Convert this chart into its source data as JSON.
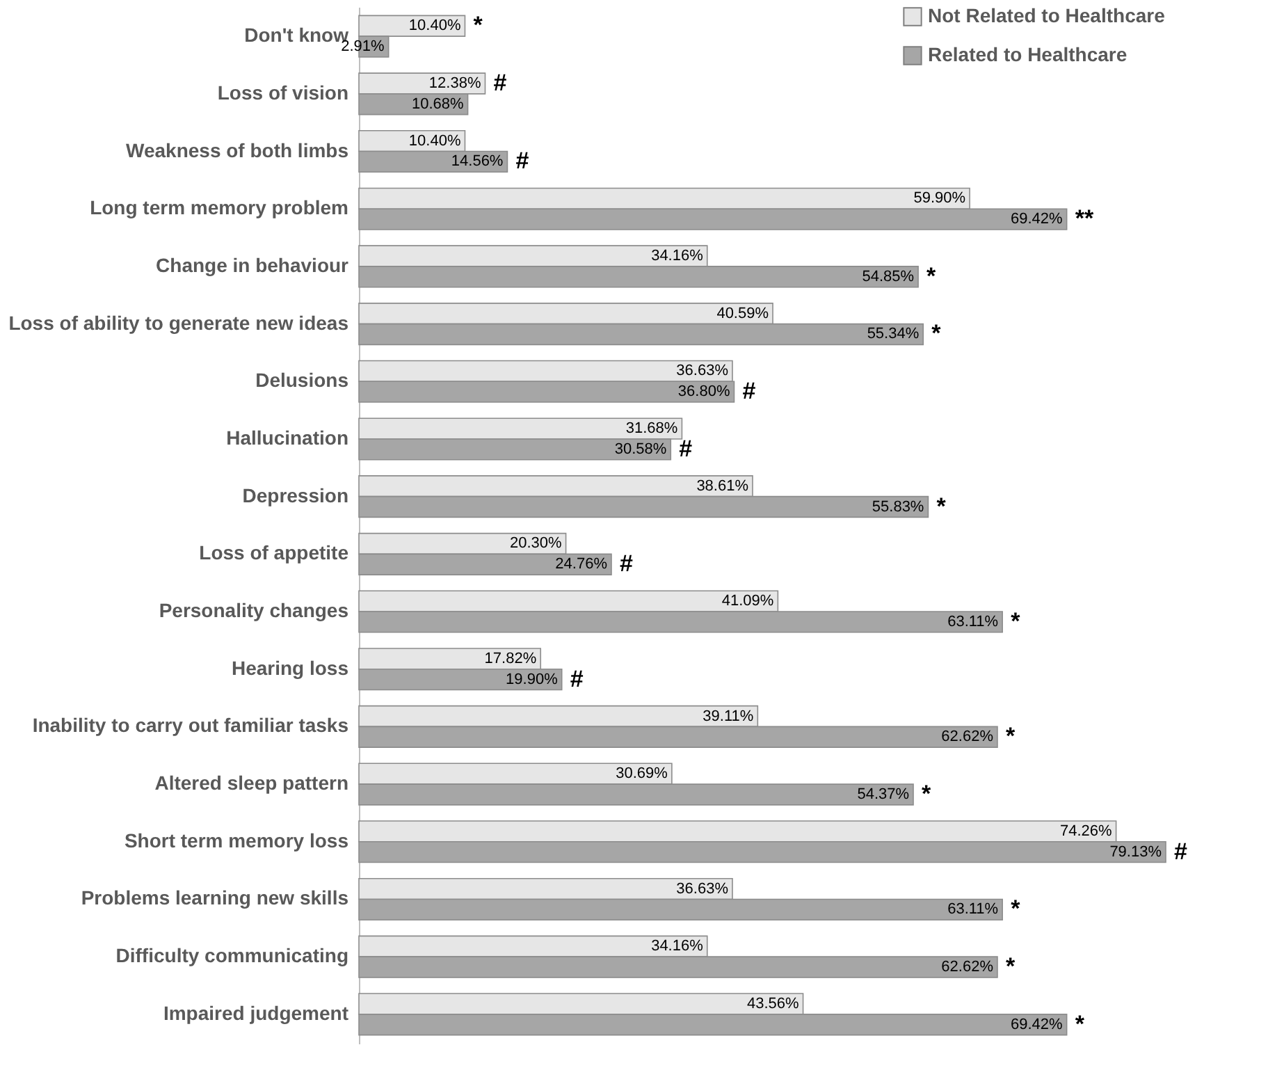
{
  "chart_data": {
    "type": "bar",
    "orientation": "horizontal",
    "legend": "top right",
    "grid": false,
    "tick_labels": "y",
    "categories": [
      "Don't know",
      "Loss of vision",
      "Weakness of both limbs",
      "Long term memory problem",
      "Change in behaviour",
      "Loss of ability to generate new ideas",
      "Delusions",
      "Hallucination",
      "Depression",
      "Loss of appetite",
      "Personality changes",
      "Hearing loss",
      "Inability to carry out familiar tasks",
      "Altered sleep pattern",
      "Short term memory loss",
      "Problems learning new skills",
      "Difficulty communicating",
      "Impaired judgement"
    ],
    "series": [
      {
        "name": "Not Related to Healthcare",
        "color": "#e6e6e6",
        "values": [
          10.4,
          12.38,
          10.4,
          59.9,
          34.16,
          40.59,
          36.63,
          31.68,
          38.61,
          20.3,
          41.09,
          17.82,
          39.11,
          30.69,
          74.26,
          36.63,
          34.16,
          43.56
        ],
        "value_labels": [
          "10.40%",
          "12.38%",
          "10.40%",
          "59.90%",
          "34.16%",
          "40.59%",
          "36.63%",
          "31.68%",
          "38.61%",
          "20.30%",
          "41.09%",
          "17.82%",
          "39.11%",
          "30.69%",
          "74.26%",
          "36.63%",
          "34.16%",
          "43.56%"
        ]
      },
      {
        "name": "Related to Healthcare",
        "color": "#a6a6a6",
        "values": [
          2.91,
          10.68,
          14.56,
          69.42,
          54.85,
          55.34,
          36.8,
          30.58,
          55.83,
          24.76,
          63.11,
          19.9,
          62.62,
          54.37,
          79.13,
          63.11,
          62.62,
          69.42
        ],
        "value_labels": [
          "2.91%",
          "10.68%",
          "14.56%",
          "69.42%",
          "54.85%",
          "55.34%",
          "36.80%",
          "30.58%",
          "55.83%",
          "24.76%",
          "63.11%",
          "19.90%",
          "62.62%",
          "54.37%",
          "79.13%",
          "63.11%",
          "62.62%",
          "69.42%"
        ]
      }
    ],
    "annotations": [
      {
        "text": "*",
        "x": 10.4,
        "y": "Don't know"
      },
      {
        "text": "#",
        "x": 12.38,
        "y": "Loss of vision"
      },
      {
        "text": "#",
        "x": 14.56,
        "y": "Weakness of both limbs"
      },
      {
        "text": "**",
        "x": 69.42,
        "y": "Long term memory problem"
      },
      {
        "text": "*",
        "x": 54.85,
        "y": "Change in behaviour"
      },
      {
        "text": "*",
        "x": 55.34,
        "y": "Loss of ability to generate new ideas"
      },
      {
        "text": "#",
        "x": 36.8,
        "y": "Delusions"
      },
      {
        "text": "#",
        "x": 30.58,
        "y": "Hallucination"
      },
      {
        "text": "*",
        "x": 55.83,
        "y": "Depression"
      },
      {
        "text": "#",
        "x": 24.76,
        "y": "Loss of appetite"
      },
      {
        "text": "*",
        "x": 63.11,
        "y": "Personality changes"
      },
      {
        "text": "#",
        "x": 19.9,
        "y": "Hearing loss"
      },
      {
        "text": "*",
        "x": 62.62,
        "y": "Inability to carry out familiar tasks"
      },
      {
        "text": "*",
        "x": 54.37,
        "y": "Altered sleep pattern"
      },
      {
        "text": "#",
        "x": 79.13,
        "y": "Short term memory loss"
      },
      {
        "text": "*",
        "x": 63.11,
        "y": "Problems learning new skills"
      },
      {
        "text": "*",
        "x": 62.62,
        "y": "Difficulty communicating"
      },
      {
        "text": "*",
        "x": 69.42,
        "y": "Impaired judgement"
      }
    ]
  }
}
